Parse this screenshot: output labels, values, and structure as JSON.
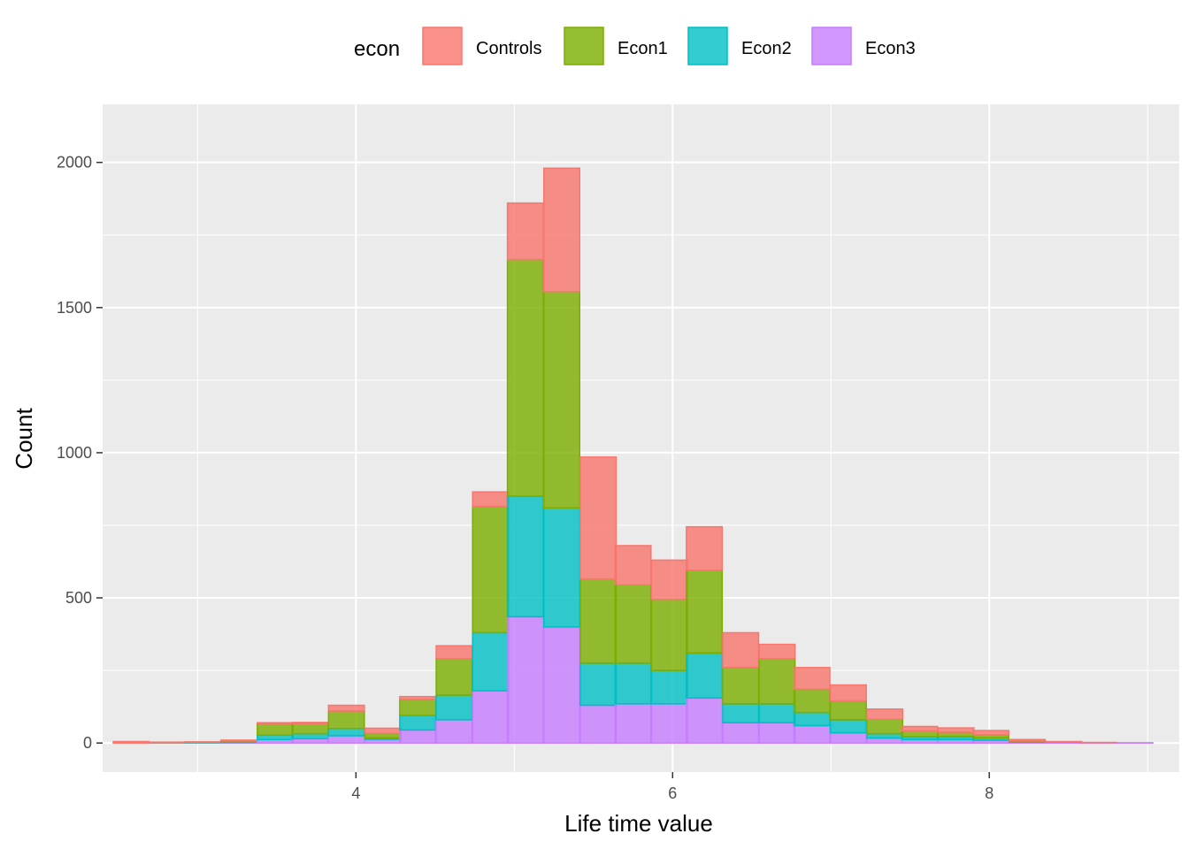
{
  "chart_data": {
    "type": "bar",
    "stacked": true,
    "title": "",
    "xlabel": "Life time value",
    "ylabel": "Count",
    "legend_title": "econ",
    "legend_position": "top",
    "grid": true,
    "xlim": [
      2.4,
      9.2
    ],
    "ylim": [
      -100,
      2200
    ],
    "x_ticks": [
      4,
      6,
      8
    ],
    "y_ticks": [
      0,
      500,
      1000,
      1500,
      2000
    ],
    "bin_width": 0.2263,
    "bin_centers": [
      2.58,
      2.81,
      3.03,
      3.26,
      3.49,
      3.71,
      3.94,
      4.17,
      4.39,
      4.62,
      4.85,
      5.07,
      5.3,
      5.53,
      5.75,
      5.98,
      6.2,
      6.43,
      6.66,
      6.88,
      7.11,
      7.34,
      7.56,
      7.79,
      8.01,
      8.24,
      8.47,
      8.69,
      8.92,
      9.15
    ],
    "series": [
      {
        "name": "Controls",
        "color": "#F8766D",
        "values": [
          5,
          1,
          1,
          3,
          3,
          4,
          20,
          18,
          10,
          45,
          50,
          195,
          425,
          420,
          135,
          135,
          150,
          120,
          50,
          75,
          55,
          35,
          15,
          15,
          15,
          5,
          1,
          1,
          0,
          0
        ]
      },
      {
        "name": "Econ1",
        "color": "#7CAE00",
        "values": [
          0,
          1,
          1,
          3,
          40,
          35,
          60,
          15,
          55,
          125,
          435,
          815,
          745,
          290,
          270,
          245,
          285,
          125,
          155,
          80,
          65,
          50,
          20,
          15,
          10,
          3,
          1,
          0,
          0,
          0
        ]
      },
      {
        "name": "Econ2",
        "color": "#00BFC4",
        "values": [
          0,
          0,
          1,
          2,
          15,
          17,
          25,
          5,
          50,
          85,
          200,
          415,
          410,
          145,
          140,
          115,
          155,
          65,
          65,
          45,
          45,
          15,
          10,
          10,
          8,
          1,
          0,
          0,
          0,
          0
        ]
      },
      {
        "name": "Econ3",
        "color": "#C77CFF",
        "values": [
          0,
          1,
          1,
          2,
          12,
          15,
          25,
          13,
          45,
          80,
          180,
          435,
          400,
          130,
          135,
          135,
          155,
          70,
          70,
          60,
          35,
          17,
          12,
          12,
          10,
          3,
          3,
          1,
          1,
          0
        ]
      }
    ]
  }
}
